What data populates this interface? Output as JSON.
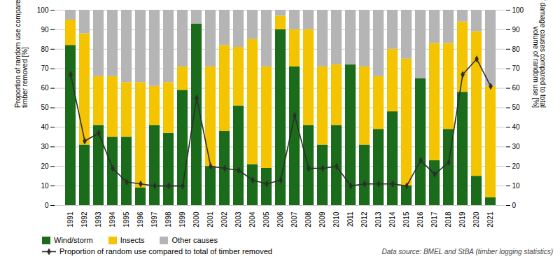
{
  "chart_data": {
    "type": "bar",
    "stacked": true,
    "categories": [
      "1991",
      "1992",
      "1993",
      "1994",
      "1995",
      "1996",
      "1997",
      "1998",
      "1999",
      "2000",
      "2001",
      "2002",
      "2003",
      "2004",
      "2005",
      "2006",
      "2007",
      "2008",
      "2009",
      "2010",
      "2011",
      "2012",
      "2013",
      "2014",
      "2015",
      "2016",
      "2017",
      "2018",
      "2019",
      "2020",
      "2021"
    ],
    "series": [
      {
        "name": "Wind/storm",
        "color": "#1a6b1a",
        "values": [
          82,
          31,
          41,
          35,
          35,
          9,
          41,
          37,
          59,
          93,
          20,
          38,
          51,
          21,
          19,
          90,
          71,
          41,
          31,
          41,
          72,
          31,
          39,
          48,
          10,
          65,
          23,
          39,
          58,
          15,
          4
        ]
      },
      {
        "name": "Insects",
        "color": "#f5c400",
        "values": [
          13,
          57,
          25,
          31,
          28,
          54,
          20,
          26,
          12,
          0,
          51,
          44,
          30,
          64,
          52,
          7,
          19,
          49,
          40,
          31,
          0,
          40,
          27,
          32,
          65,
          0,
          60,
          44,
          36,
          74,
          57
        ]
      },
      {
        "name": "Other causes",
        "color": "#b5b5b5",
        "values": [
          5,
          12,
          34,
          34,
          37,
          37,
          39,
          37,
          29,
          7,
          29,
          18,
          19,
          15,
          29,
          3,
          10,
          10,
          29,
          28,
          28,
          29,
          34,
          20,
          25,
          35,
          17,
          17,
          6,
          11,
          39
        ]
      },
      {
        "name": "Proportion of random use compared to total of timber removed",
        "type": "line",
        "axis": "y2",
        "color": "#2d2d2d",
        "marker": "diamond",
        "values": [
          67,
          33,
          37,
          19,
          12,
          11,
          10,
          10,
          10,
          55,
          20,
          19,
          18,
          13,
          11,
          13,
          46,
          19,
          19,
          20,
          10,
          11,
          11,
          11,
          10,
          23,
          16,
          22,
          67,
          75,
          61
        ]
      }
    ],
    "ylabel": "Proportion of random use compared to total of\ntimber removed [%]",
    "y2label": "Proportion of damage causes compared to total\nvolume of random use [%]",
    "ylim": [
      0,
      100
    ],
    "yticks": [
      0,
      10,
      20,
      30,
      40,
      50,
      60,
      70,
      80,
      90,
      100
    ],
    "y2lim": [
      0,
      100
    ],
    "y2ticks": [
      0,
      10,
      20,
      30,
      40,
      50,
      60,
      70,
      80,
      90,
      100
    ],
    "grid": true,
    "legend": "bottom",
    "caption": "Data source: BMEL and StBA (timber logging statistics)"
  }
}
